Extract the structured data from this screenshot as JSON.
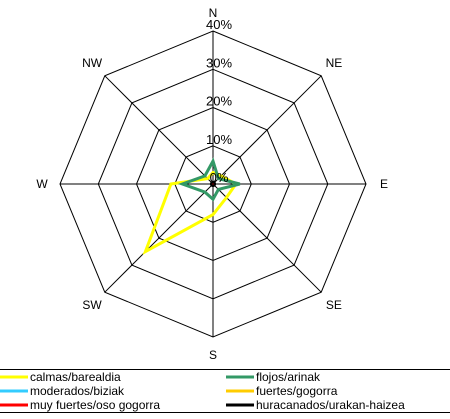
{
  "chart_data": {
    "type": "radar",
    "title": "",
    "directions": [
      "N",
      "NE",
      "E",
      "SE",
      "S",
      "SW",
      "W",
      "NW"
    ],
    "rings": [
      0,
      10,
      20,
      30,
      40
    ],
    "ring_labels": [
      "0%",
      "10%",
      "20%",
      "30%",
      "40%"
    ],
    "range": [
      0,
      40
    ],
    "grid": true,
    "legend_position": "bottom",
    "series": [
      {
        "name": "calmas/barealdia",
        "color": "#ffff00",
        "values": [
          3,
          3,
          6,
          5,
          8,
          25,
          11,
          2
        ]
      },
      {
        "name": "flojos/arinak",
        "color": "#339966",
        "values": [
          6,
          2,
          7,
          2,
          4,
          3,
          8,
          3
        ]
      },
      {
        "name": "moderados/biziak",
        "color": "#33ccff",
        "values": [
          0.3,
          0.3,
          0.3,
          0.3,
          0.3,
          0.3,
          0.3,
          0.3
        ]
      },
      {
        "name": "fuertes/gogorra",
        "color": "#ffcc00",
        "values": [
          0.2,
          0.2,
          0.2,
          0.2,
          0.2,
          0.2,
          0.2,
          0.2
        ]
      },
      {
        "name": "muy fuertes/oso gogorra",
        "color": "#ff0000",
        "values": [
          0.1,
          0.1,
          0.1,
          0.1,
          0.1,
          0.1,
          0.1,
          0.1
        ]
      },
      {
        "name": "huracanados/urakan-haizea",
        "color": "#000000",
        "values": [
          0.5,
          0.5,
          0.5,
          0.5,
          0.5,
          0.5,
          0.5,
          0.5
        ]
      }
    ]
  }
}
